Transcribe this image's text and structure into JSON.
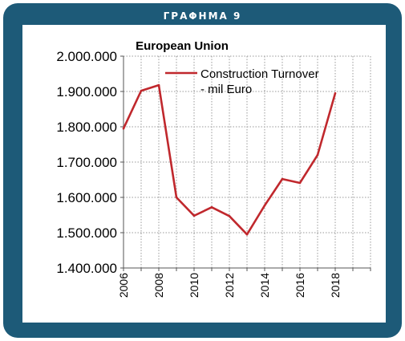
{
  "frame": {
    "title": "ΓΡΑΦΗΜΑ 9"
  },
  "chart_data": {
    "type": "line",
    "title": "European Union",
    "xlabel": "",
    "ylabel": "",
    "x": [
      2006,
      2007,
      2008,
      2009,
      2010,
      2011,
      2012,
      2013,
      2014,
      2015,
      2016,
      2017,
      2018
    ],
    "series": [
      {
        "name": "Construction Turnover - mil Euro",
        "legend_lines": [
          "Construction Turnover",
          "- mil Euro"
        ],
        "color": "#c0282d",
        "values": [
          1795000,
          1902000,
          1918000,
          1600000,
          1548000,
          1572000,
          1547000,
          1495000,
          1577000,
          1652000,
          1641000,
          1720000,
          1895000
        ]
      }
    ],
    "ylim": [
      1400000,
      2000000
    ],
    "yticks": [
      1400000,
      1500000,
      1600000,
      1700000,
      1800000,
      1900000,
      2000000
    ],
    "ytick_labels": [
      "1.400.000",
      "1.500.000",
      "1.600.000",
      "1.700.000",
      "1.800.000",
      "1.900.000",
      "2.000.000"
    ],
    "xlim": [
      2006,
      2020
    ],
    "xticks": [
      2006,
      2008,
      2010,
      2012,
      2014,
      2016,
      2018
    ],
    "xtick_labels": [
      "2006",
      "2008",
      "2010",
      "2012",
      "2014",
      "2016",
      "2018"
    ],
    "grid": true,
    "legend_position": "top-right"
  }
}
